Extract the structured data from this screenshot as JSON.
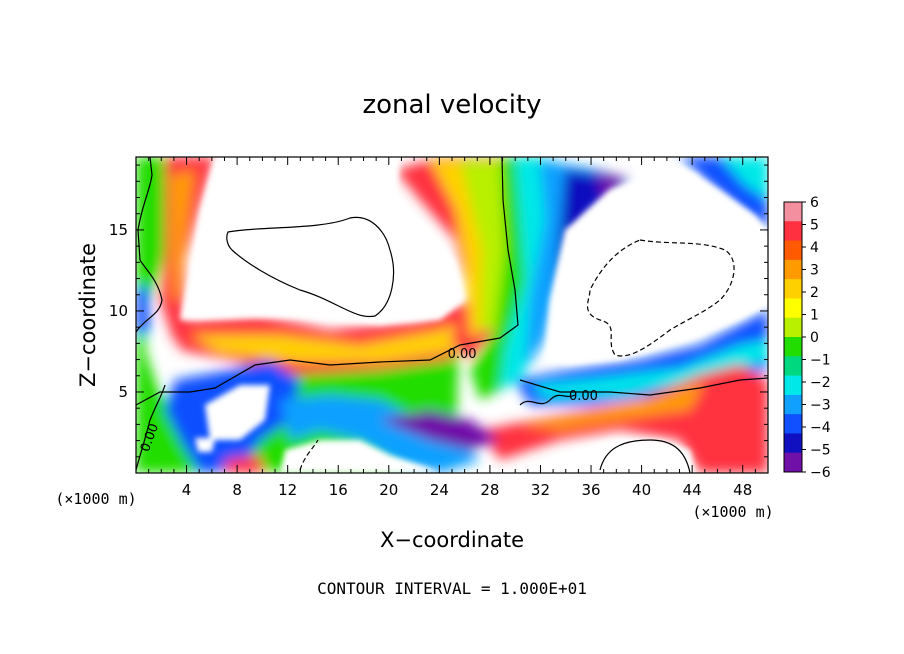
{
  "chart_data": {
    "type": "heatmap",
    "title": "zonal velocity",
    "xlabel": "X−coordinate",
    "ylabel": "Z−coordinate",
    "x_unit_left": "(×1000 m)",
    "x_unit_right": "(×1000 m)",
    "footer": "CONTOUR INTERVAL = 1.000E+01",
    "xlim": [
      0,
      50
    ],
    "ylim": [
      0,
      19.5
    ],
    "xticks": [
      4,
      8,
      12,
      16,
      20,
      24,
      28,
      32,
      36,
      40,
      44,
      48
    ],
    "yticks": [
      5,
      10,
      15
    ],
    "colorbar": {
      "ticks": [
        6,
        5,
        4,
        3,
        2,
        1,
        0,
        -1,
        -2,
        -3,
        -4,
        -5,
        -6
      ],
      "tick_labels": [
        "6",
        "5",
        "4",
        "3",
        "2",
        "1",
        "0",
        "−1",
        "−2",
        "−3",
        "−4",
        "−5",
        "−6"
      ],
      "colors": [
        "#f48fa0",
        "#ff3040",
        "#ff5a00",
        "#ff9a00",
        "#ffd000",
        "#ffff00",
        "#b8f000",
        "#22dd00",
        "#00d880",
        "#00e8e8",
        "#10a0ff",
        "#1050ff",
        "#1010c0",
        "#7010a8"
      ]
    },
    "contour_labels": [
      {
        "text": "0.00",
        "x": 25.8,
        "z": 7.4
      },
      {
        "text": "0.00",
        "x": 35.4,
        "z": 4.8
      },
      {
        "text": "0.00",
        "x": 1.0,
        "z": 2.2
      }
    ]
  }
}
